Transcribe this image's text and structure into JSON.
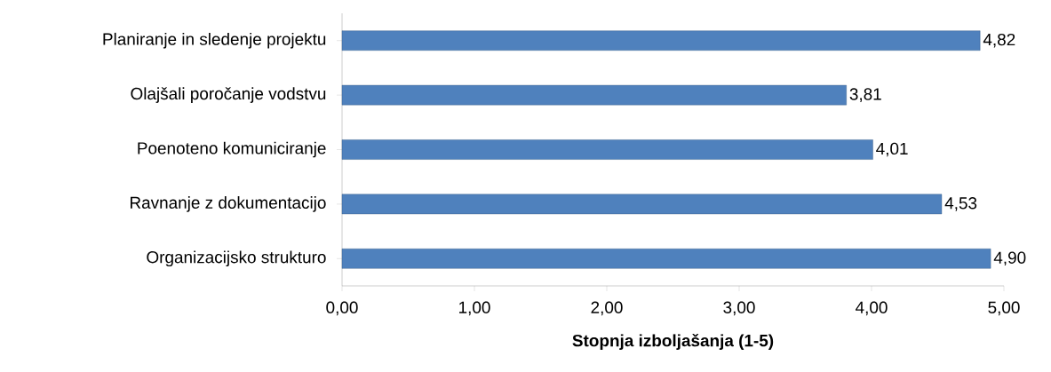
{
  "chart_data": {
    "type": "bar",
    "orientation": "horizontal",
    "xlabel": "Stopnja izboljašanja (1-5)",
    "categories": [
      "Planiranje in sledenje projektu",
      "Olajšali poročanje vodstvu",
      "Poenoteno komuniciranje",
      "Ravnanje z dokumentacijo",
      "Organizacijsko strukturo"
    ],
    "values": [
      4.82,
      3.81,
      4.01,
      4.53,
      4.9
    ],
    "value_labels": [
      "4,82",
      "3,81",
      "4,01",
      "4,53",
      "4,90"
    ],
    "color": "#4f81bd",
    "xlim": [
      0,
      5
    ],
    "xticks": [
      {
        "value": 0,
        "label": "0,00"
      },
      {
        "value": 1,
        "label": "1,00"
      },
      {
        "value": 2,
        "label": "2,00"
      },
      {
        "value": 3,
        "label": "3,00"
      },
      {
        "value": 4,
        "label": "4,00"
      },
      {
        "value": 5,
        "label": "5,00"
      }
    ],
    "grid": false
  }
}
